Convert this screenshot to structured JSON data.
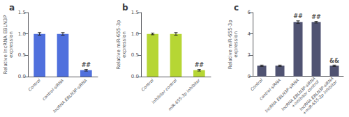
{
  "chart_data": [
    {
      "type": "bar",
      "title": "a",
      "ylabel": "Relative lncRNA EBLN3P\nexpression",
      "categories": [
        "Control",
        "control-siRNA",
        "lncRNA EBLN3P-siRNA"
      ],
      "values": [
        1.0,
        1.0,
        0.15
      ],
      "errors": [
        0.03,
        0.03,
        0.02
      ],
      "ylim": [
        0,
        1.5
      ],
      "yticks": [
        {
          "value": 0,
          "label": "0.0"
        },
        0.5,
        {
          "value": 1,
          "label": "1.0"
        },
        1.5
      ],
      "annotations": [
        {
          "category": "lncRNA EBLN3P-siRNA",
          "text": "##"
        }
      ]
    },
    {
      "type": "bar",
      "title": "b",
      "ylabel": "Relative miR-655-3p\nexpression",
      "categories": [
        "Control",
        "inhibitor control",
        "miR-655-3p inhibitor"
      ],
      "values": [
        1.0,
        1.0,
        0.15
      ],
      "errors": [
        0.02,
        0.03,
        0.02
      ],
      "ylim": [
        0,
        1.5
      ],
      "yticks": [
        {
          "value": 0,
          "label": "0.0"
        },
        0.5,
        {
          "value": 1,
          "label": "1.0"
        },
        1.5
      ],
      "annotations": [
        {
          "category": "miR-655-3p inhibitor",
          "text": "##"
        }
      ]
    },
    {
      "type": "bar",
      "title": "c",
      "ylabel": "Relative miR-655-3p\nexpression",
      "categories": [
        "Control",
        "control-siRNA",
        "lncRNA EBLN3P-siRNA",
        "lncRNA EBLN3P-siRNA\n+inhibitor control",
        "lncRNA EBLN3P-siRNA\n+miR-655-3p inhibitor"
      ],
      "values": [
        1.0,
        1.0,
        5.1,
        5.1,
        1.0
      ],
      "errors": [
        0.06,
        0.06,
        0.12,
        0.08,
        0.06
      ],
      "ylim": [
        0,
        6
      ],
      "yticks": [
        0,
        2,
        4,
        6
      ],
      "annotations": [
        {
          "category": "lncRNA EBLN3P-siRNA",
          "text": "##"
        },
        {
          "category": "lncRNA EBLN3P-siRNA\n+inhibitor control",
          "text": "##"
        },
        {
          "category": "lncRNA EBLN3P-siRNA\n+miR-655-3p inhibitor",
          "text": "&&"
        }
      ]
    }
  ]
}
